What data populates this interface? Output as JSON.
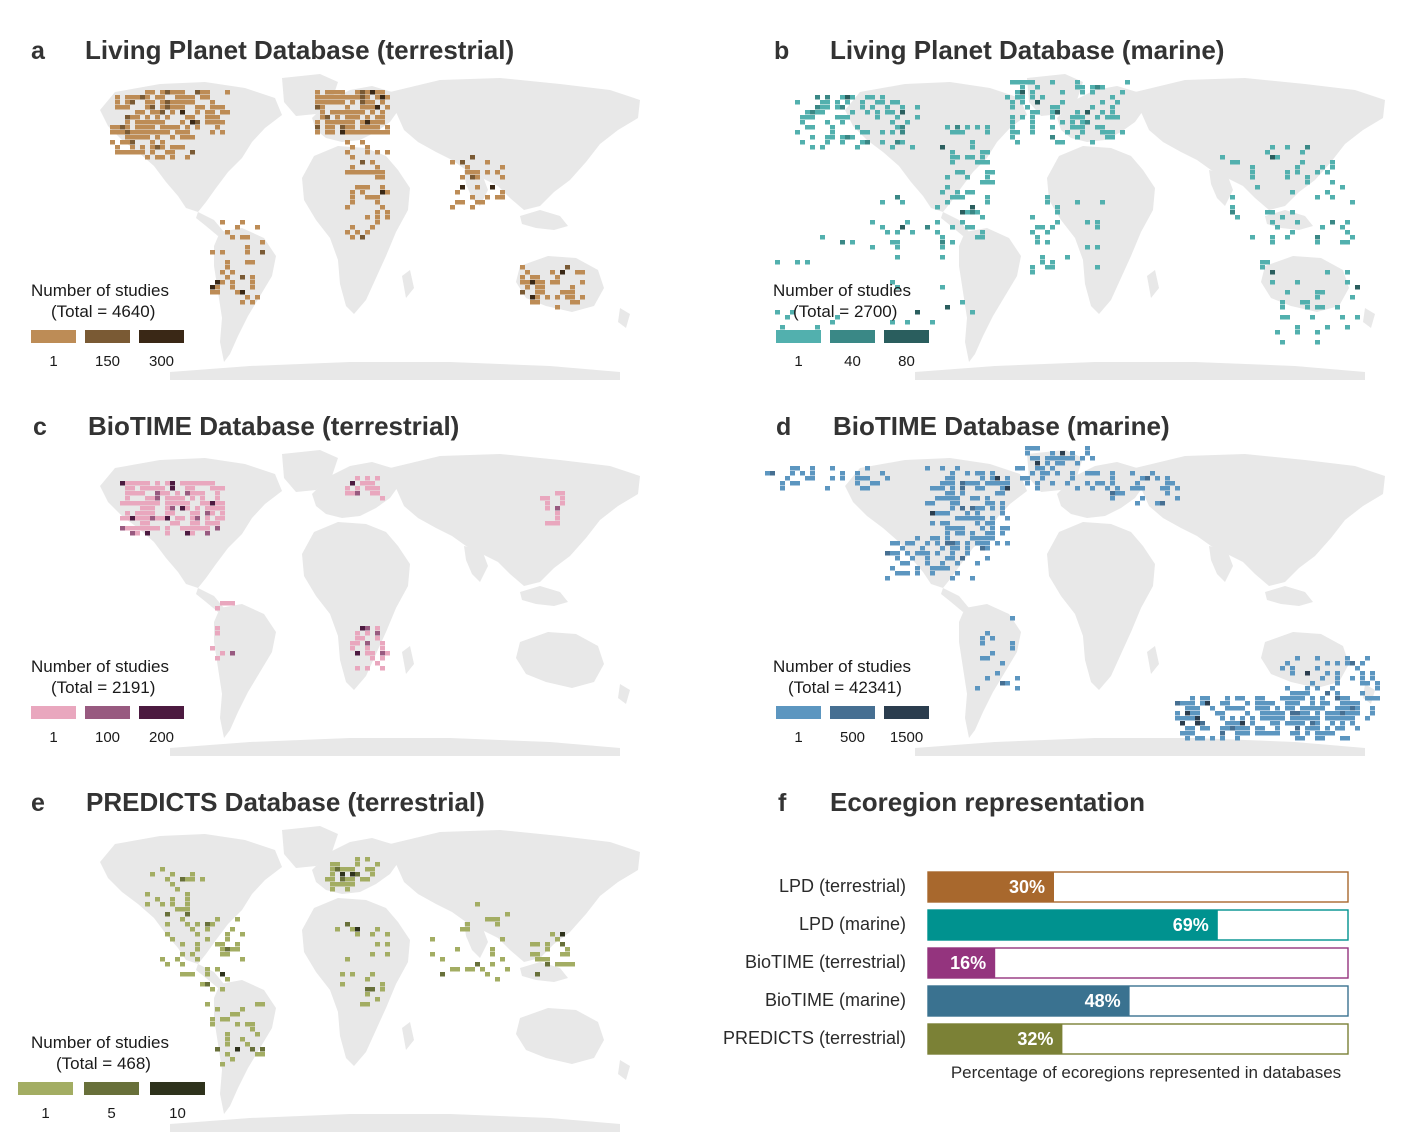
{
  "panels": [
    {
      "id": "a",
      "letter": "a",
      "title": "Living Planet Database (terrestrial)",
      "realm": "terrestrial",
      "color": "#b88a50",
      "legend": {
        "title": "Number of studies",
        "total": "(Total = 4640)",
        "labels": [
          "1",
          "150",
          "300"
        ],
        "colors": [
          "#bd8c56",
          "#7a5a34",
          "#3a2816"
        ]
      }
    },
    {
      "id": "b",
      "letter": "b",
      "title": "Living Planet Database (marine)",
      "realm": "marine",
      "color": "#4fb0ae",
      "legend": {
        "title": "Number of studies",
        "total": "(Total = 2700)",
        "labels": [
          "1",
          "40",
          "80"
        ],
        "colors": [
          "#52b0ae",
          "#3a8886",
          "#2a5e5e"
        ]
      }
    },
    {
      "id": "c",
      "letter": "c",
      "title": "BioTIME Database (terrestrial)",
      "realm": "terrestrial",
      "color": "#e6a5bd",
      "legend": {
        "title": "Number of studies",
        "total": "(Total = 2191)",
        "labels": [
          "1",
          "100",
          "200"
        ],
        "colors": [
          "#e9a7be",
          "#985a80",
          "#4c1a40"
        ]
      }
    },
    {
      "id": "d",
      "letter": "d",
      "title": "BioTIME Database (marine)",
      "realm": "marine",
      "color": "#5b93c0",
      "legend": {
        "title": "Number of studies",
        "total": "(Total = 42341)",
        "labels": [
          "1",
          "500",
          "1500"
        ],
        "colors": [
          "#5c96c0",
          "#466f92",
          "#2b3d4e"
        ]
      }
    },
    {
      "id": "e",
      "letter": "e",
      "title": "PREDICTS Database (terrestrial)",
      "realm": "terrestrial",
      "color": "#a2ad63",
      "legend": {
        "title": "Number of studies",
        "total": "(Total = 468)",
        "labels": [
          "1",
          "5",
          "10"
        ],
        "colors": [
          "#a3ad63",
          "#68703a",
          "#2e321c"
        ]
      }
    }
  ],
  "panel_f": {
    "letter": "f",
    "title": "Ecoregion representation"
  },
  "chart_data": {
    "type": "bar",
    "orientation": "horizontal",
    "title": "Ecoregion representation",
    "xlabel": "Percentage of ecoregions represented in databases",
    "xlim": [
      0,
      100
    ],
    "categories": [
      "LPD (terrestrial)",
      "LPD (marine)",
      "BioTIME (terrestrial)",
      "BioTIME (marine)",
      "PREDICTS (terrestrial)"
    ],
    "values": [
      30,
      69,
      16,
      48,
      32
    ],
    "value_labels": [
      "30%",
      "69%",
      "16%",
      "48%",
      "32%"
    ],
    "colors": [
      "#a8682d",
      "#00928f",
      "#94347e",
      "#3a7290",
      "#7b8136"
    ]
  }
}
